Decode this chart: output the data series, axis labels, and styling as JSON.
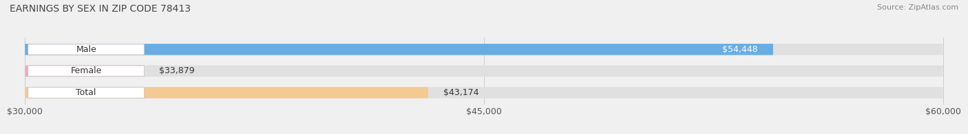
{
  "title": "EARNINGS BY SEX IN ZIP CODE 78413",
  "source": "Source: ZipAtlas.com",
  "categories": [
    "Male",
    "Female",
    "Total"
  ],
  "values": [
    54448,
    33879,
    43174
  ],
  "bar_colors": [
    "#6aade4",
    "#f4a8be",
    "#f5c992"
  ],
  "value_labels": [
    "$54,448",
    "$33,879",
    "$43,174"
  ],
  "xmin": 30000,
  "xmax": 60000,
  "xticks": [
    30000,
    45000,
    60000
  ],
  "xtick_labels": [
    "$30,000",
    "$45,000",
    "$60,000"
  ],
  "background_color": "#f0f0f0",
  "bar_background_color": "#e0e0e0",
  "title_fontsize": 10,
  "source_fontsize": 8,
  "tick_fontsize": 9,
  "bar_height": 0.52,
  "bar_label_fontsize": 9,
  "value_label_fontsize": 9
}
